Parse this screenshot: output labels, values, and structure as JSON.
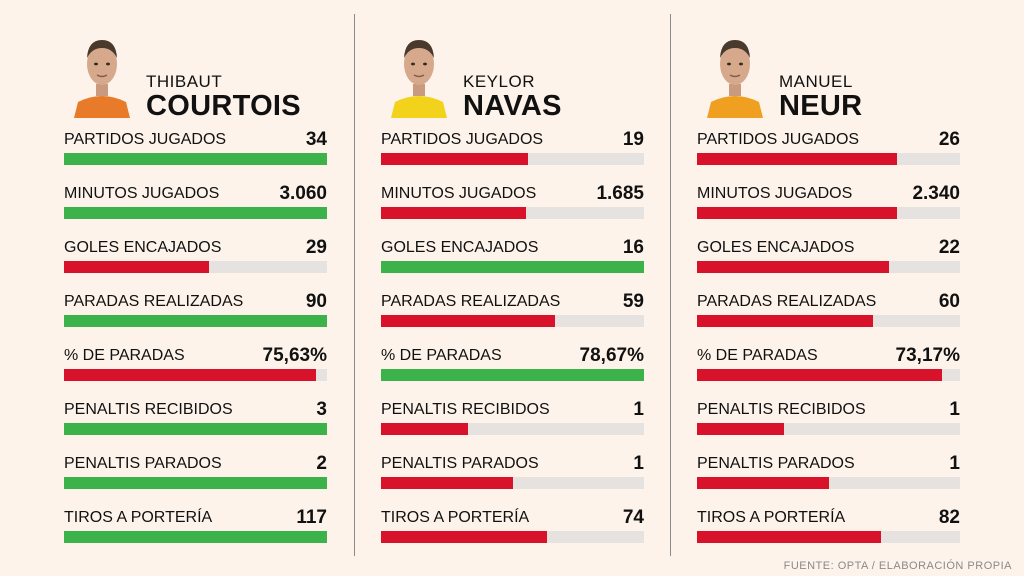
{
  "colors": {
    "best": "#3cb34a",
    "worse": "#d8122a",
    "track": "#e6e2df",
    "background": "#fdf3ea"
  },
  "source": "FUENTE: OPTA / ELABORACIÓN PROPIA",
  "chart_data": {
    "type": "bar",
    "categories": [
      "PARTIDOS JUGADOS",
      "MINUTOS JUGADOS",
      "GOLES ENCAJADOS",
      "PARADAS REALIZADAS",
      "% DE PARADAS",
      "PENALTIS RECIBIDOS",
      "PENALTIS PARADOS",
      "TIROS A PORTERÍA"
    ],
    "players": [
      {
        "first_name": "THIBAUT",
        "last_name": "COURTOIS",
        "shirt_color": "#e87b2a",
        "stats": [
          {
            "label": "PARTIDOS JUGADOS",
            "display": "34",
            "value": 34,
            "fraction": 1.0,
            "color": "best"
          },
          {
            "label": "MINUTOS JUGADOS",
            "display": "3.060",
            "value": 3060,
            "fraction": 1.0,
            "color": "best"
          },
          {
            "label": "GOLES ENCAJADOS",
            "display": "29",
            "value": 29,
            "fraction": 0.55,
            "color": "worse"
          },
          {
            "label": "PARADAS REALIZADAS",
            "display": "90",
            "value": 90,
            "fraction": 1.0,
            "color": "best"
          },
          {
            "label": "% DE PARADAS",
            "display": "75,63%",
            "value": 75.63,
            "fraction": 0.96,
            "color": "worse"
          },
          {
            "label": "PENALTIS RECIBIDOS",
            "display": "3",
            "value": 3,
            "fraction": 1.0,
            "color": "best"
          },
          {
            "label": "PENALTIS PARADOS",
            "display": "2",
            "value": 2,
            "fraction": 1.0,
            "color": "best"
          },
          {
            "label": "TIROS A PORTERÍA",
            "display": "117",
            "value": 117,
            "fraction": 1.0,
            "color": "best"
          }
        ]
      },
      {
        "first_name": "KEYLOR",
        "last_name": "NAVAS",
        "shirt_color": "#f2d21a",
        "stats": [
          {
            "label": "PARTIDOS JUGADOS",
            "display": "19",
            "value": 19,
            "fraction": 0.56,
            "color": "worse"
          },
          {
            "label": "MINUTOS JUGADOS",
            "display": "1.685",
            "value": 1685,
            "fraction": 0.55,
            "color": "worse"
          },
          {
            "label": "GOLES ENCAJADOS",
            "display": "16",
            "value": 16,
            "fraction": 1.0,
            "color": "best"
          },
          {
            "label": "PARADAS REALIZADAS",
            "display": "59",
            "value": 59,
            "fraction": 0.66,
            "color": "worse"
          },
          {
            "label": "% DE PARADAS",
            "display": "78,67%",
            "value": 78.67,
            "fraction": 1.0,
            "color": "best"
          },
          {
            "label": "PENALTIS RECIBIDOS",
            "display": "1",
            "value": 1,
            "fraction": 0.33,
            "color": "worse"
          },
          {
            "label": "PENALTIS PARADOS",
            "display": "1",
            "value": 1,
            "fraction": 0.5,
            "color": "worse"
          },
          {
            "label": "TIROS A PORTERÍA",
            "display": "74",
            "value": 74,
            "fraction": 0.63,
            "color": "worse"
          }
        ]
      },
      {
        "first_name": "MANUEL",
        "last_name": "NEUR",
        "shirt_color": "#f0a020",
        "stats": [
          {
            "label": "PARTIDOS JUGADOS",
            "display": "26",
            "value": 26,
            "fraction": 0.76,
            "color": "worse"
          },
          {
            "label": "MINUTOS JUGADOS",
            "display": "2.340",
            "value": 2340,
            "fraction": 0.76,
            "color": "worse"
          },
          {
            "label": "GOLES ENCAJADOS",
            "display": "22",
            "value": 22,
            "fraction": 0.73,
            "color": "worse"
          },
          {
            "label": "PARADAS REALIZADAS",
            "display": "60",
            "value": 60,
            "fraction": 0.67,
            "color": "worse"
          },
          {
            "label": "% DE PARADAS",
            "display": "73,17%",
            "value": 73.17,
            "fraction": 0.93,
            "color": "worse"
          },
          {
            "label": "PENALTIS RECIBIDOS",
            "display": "1",
            "value": 1,
            "fraction": 0.33,
            "color": "worse"
          },
          {
            "label": "PENALTIS PARADOS",
            "display": "1",
            "value": 1,
            "fraction": 0.5,
            "color": "worse"
          },
          {
            "label": "TIROS A PORTERÍA",
            "display": "82",
            "value": 82,
            "fraction": 0.7,
            "color": "worse"
          }
        ]
      }
    ]
  }
}
